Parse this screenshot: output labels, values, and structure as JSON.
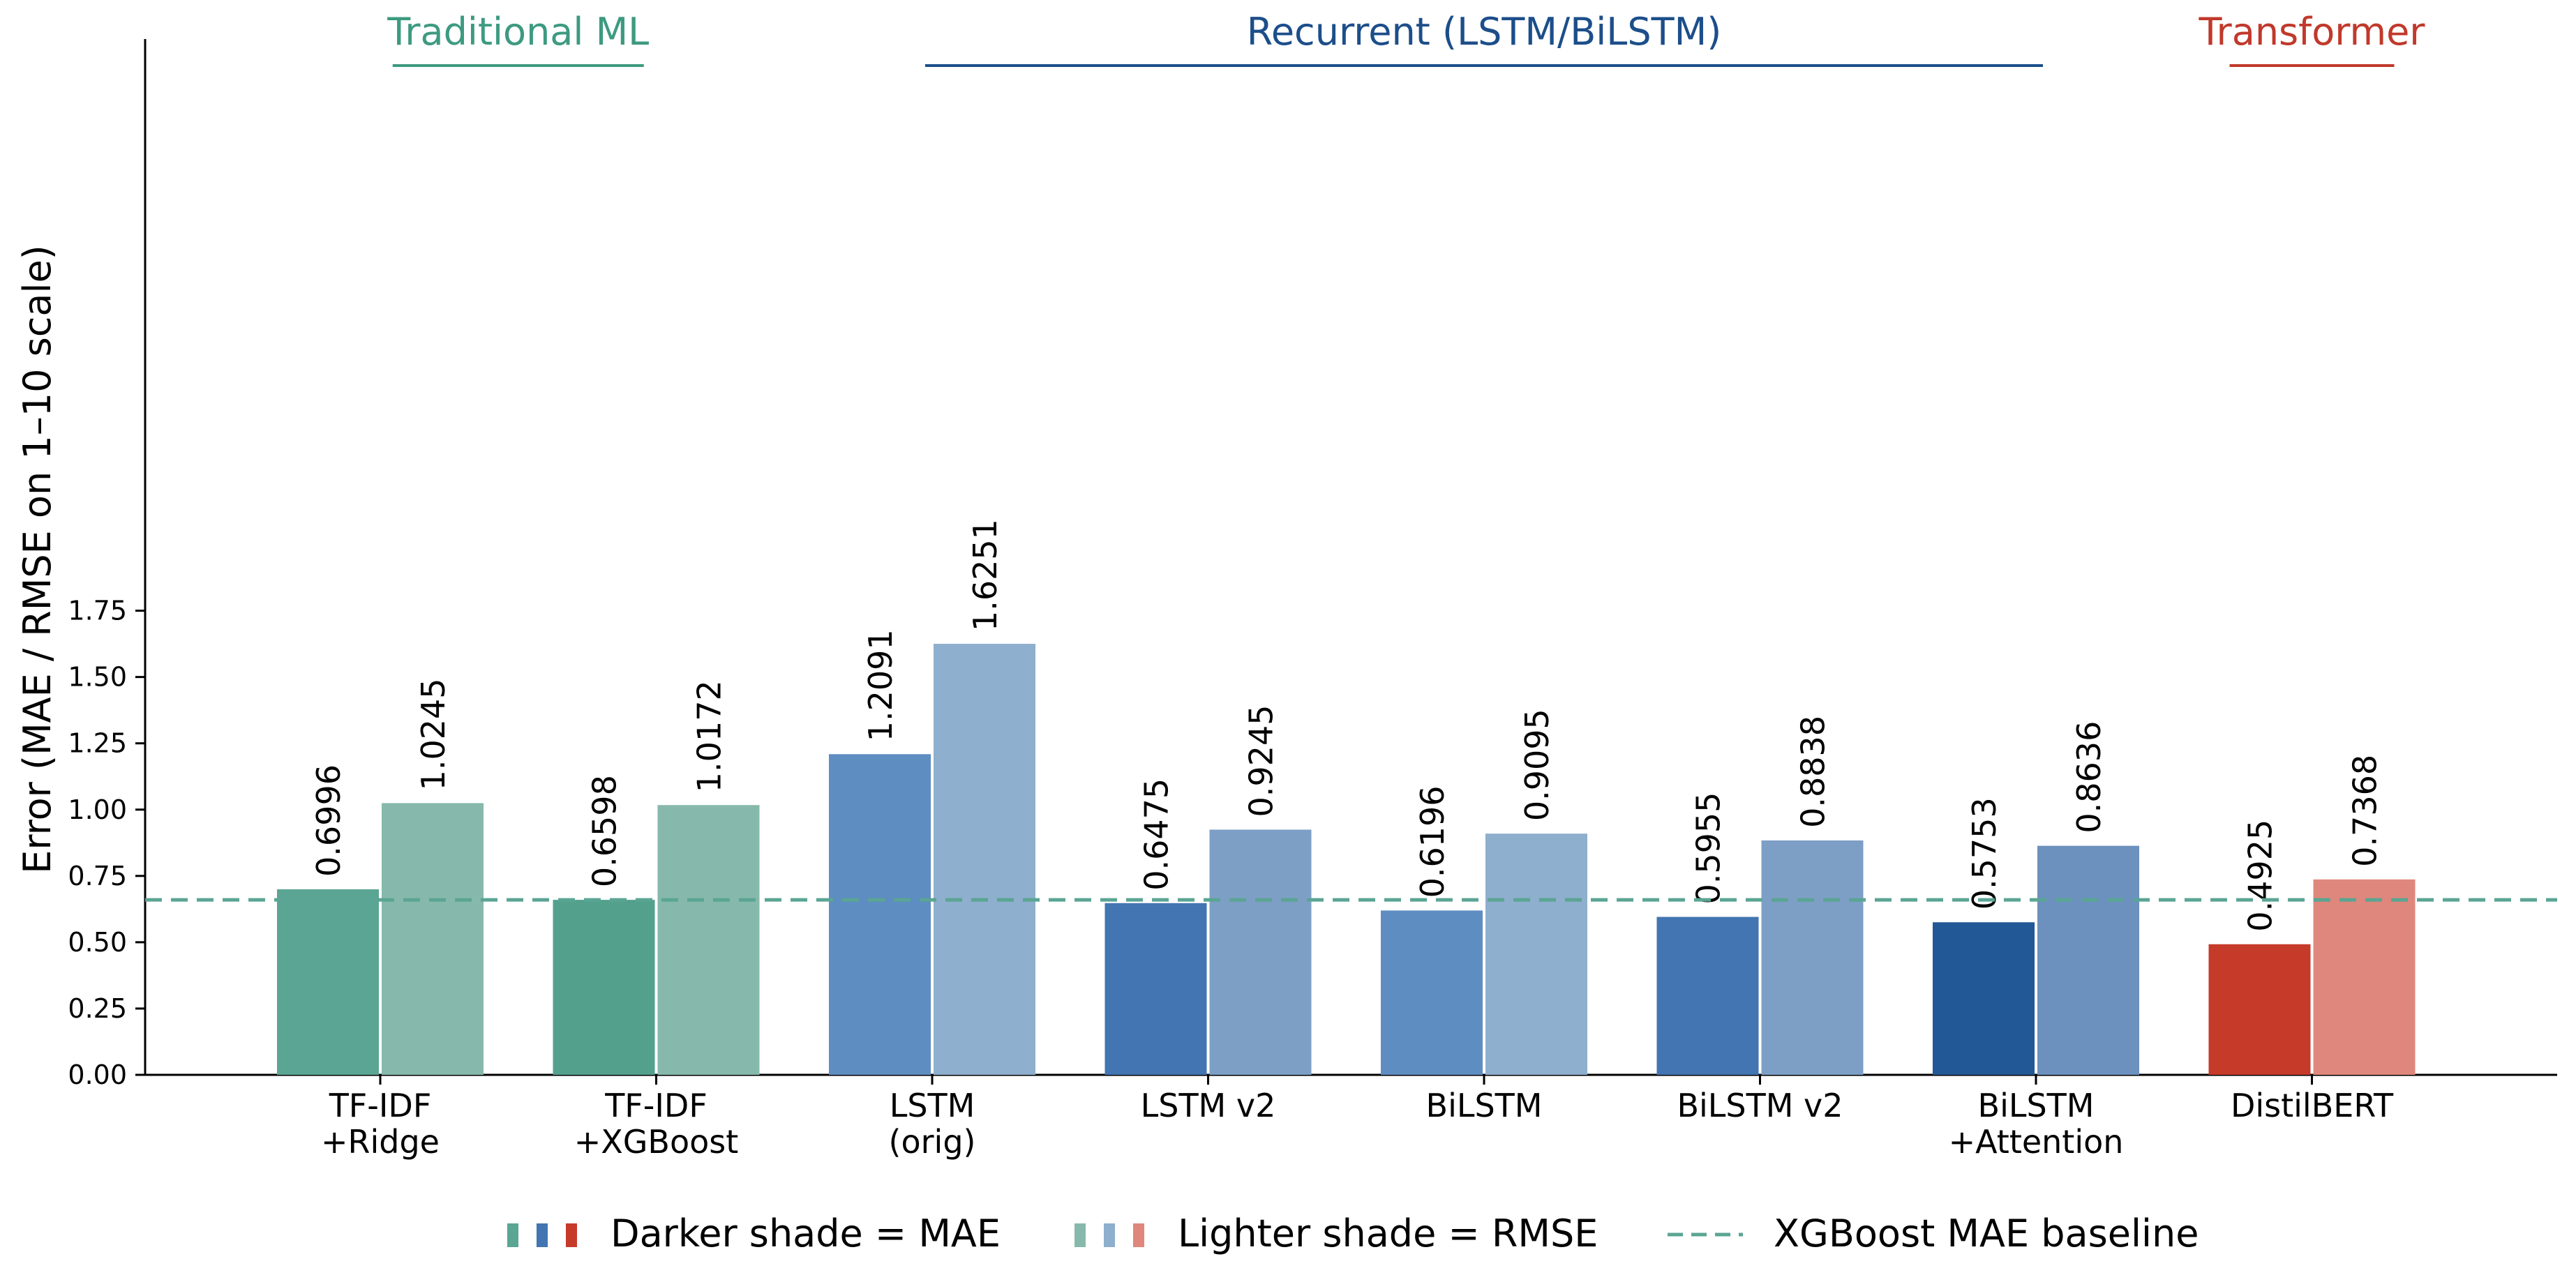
{
  "chart_data": {
    "type": "bar",
    "ylabel": "Error (MAE / RMSE on 1–10 scale)",
    "ylim": [
      0,
      1.92
    ],
    "yticks": [
      "0.00",
      "0.25",
      "0.50",
      "0.75",
      "1.00",
      "1.25",
      "1.50",
      "1.75"
    ],
    "categories": [
      [
        "TF-IDF",
        "+Ridge"
      ],
      [
        "TF-IDF",
        "+XGBoost"
      ],
      [
        "LSTM",
        "(orig)"
      ],
      [
        "LSTM v2"
      ],
      [
        "BiLSTM"
      ],
      [
        "BiLSTM v2"
      ],
      [
        "BiLSTM",
        "+Attention"
      ],
      [
        "DistilBERT"
      ]
    ],
    "series": [
      {
        "metric": "MAE",
        "values": [
          0.6996,
          0.6598,
          1.2091,
          0.6475,
          0.6196,
          0.5955,
          0.5753,
          0.4925
        ],
        "labels": [
          "0.6996",
          "0.6598",
          "1.2091",
          "0.6475",
          "0.6196",
          "0.5955",
          "0.5753",
          "0.4925"
        ],
        "colors": [
          "#5aa593",
          "#53a08d",
          "#5e8dc2",
          "#4275b1",
          "#5e8dc2",
          "#4275b1",
          "#225895",
          "#c63a2a"
        ]
      },
      {
        "metric": "RMSE",
        "values": [
          1.0245,
          1.0172,
          1.6251,
          0.9245,
          0.9095,
          0.8838,
          0.8636,
          0.7368
        ],
        "labels": [
          "1.0245",
          "1.0172",
          "1.6251",
          "0.9245",
          "0.9095",
          "0.8838",
          "0.8636",
          "0.7368"
        ],
        "colors": [
          "#86b9ab",
          "#86b9ab",
          "#8eafcd",
          "#7d9fc5",
          "#8eafcd",
          "#7d9fc5",
          "#6c91bf",
          "#df877c"
        ]
      }
    ],
    "baseline": {
      "value": 0.6598,
      "color": "#5aa593"
    },
    "groups": [
      {
        "label": "Traditional ML",
        "color": "#3d9a80",
        "from": 0,
        "to": 1
      },
      {
        "label": "Recurrent (LSTM/BiLSTM)",
        "color": "#1c4e8a",
        "from": 2,
        "to": 6
      },
      {
        "label": "Transformer",
        "color": "#c0392b",
        "from": 7,
        "to": 7
      }
    ],
    "legend": {
      "position": "bottom-center",
      "items": [
        {
          "label": "Darker shade = MAE",
          "swatches": [
            "#5aa593",
            "#4275b1",
            "#c63a2a"
          ],
          "kind": "bars"
        },
        {
          "label": "Lighter shade = RMSE",
          "swatches": [
            "#86b9ab",
            "#8eafcd",
            "#df877c"
          ],
          "kind": "bars"
        },
        {
          "label": "XGBoost MAE baseline",
          "swatches": [
            "#5aa593"
          ],
          "kind": "dashed-line"
        }
      ]
    }
  }
}
